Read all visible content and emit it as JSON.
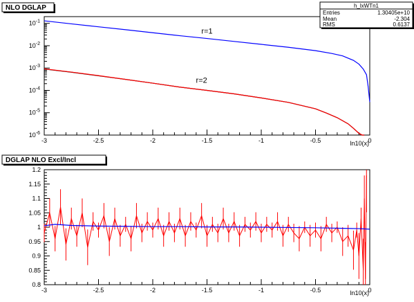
{
  "stats": {
    "name": "h_lxWTn1",
    "rows": [
      {
        "label": "Entries",
        "value": "1.30405e+10"
      },
      {
        "label": "Mean",
        "value": "-2.304"
      },
      {
        "label": "RMS",
        "value": "0.6137"
      }
    ]
  },
  "chart_data": [
    {
      "type": "line",
      "title": "NLO DGLAP",
      "xlabel": "ln10(x)",
      "ylabel": "",
      "xlim": [
        -3,
        0
      ],
      "ylim": [
        1e-06,
        0.2
      ],
      "yscale": "log",
      "x_ticks": [
        "-3",
        "-2.5",
        "-2",
        "-1.5",
        "-1",
        "-0.5",
        "0"
      ],
      "y_ticks": [
        {
          "value": 0.1,
          "base": "10",
          "exp": "-1"
        },
        {
          "value": 0.01,
          "base": "10",
          "exp": "-2"
        },
        {
          "value": 0.001,
          "base": "10",
          "exp": "-3"
        },
        {
          "value": 0.0001,
          "base": "10",
          "exp": "-4"
        },
        {
          "value": 1e-05,
          "base": "10",
          "exp": "-5"
        },
        {
          "value": 1e-06,
          "base": "10",
          "exp": "-6"
        }
      ],
      "annotations": [
        {
          "text": "r=1",
          "x": -1.5,
          "y": 0.035
        },
        {
          "text": "r=2",
          "x": -1.55,
          "y": 0.00022
        }
      ],
      "series": [
        {
          "label": "r=1",
          "color": "#0000ff",
          "x": [
            -3.0,
            -2.75,
            -2.5,
            -2.25,
            -2.0,
            -1.75,
            -1.5,
            -1.25,
            -1.0,
            -0.75,
            -0.5,
            -0.35,
            -0.25,
            -0.15,
            -0.1,
            -0.06,
            -0.03,
            -0.015,
            0.0
          ],
          "y": [
            0.13,
            0.095,
            0.07,
            0.052,
            0.038,
            0.028,
            0.021,
            0.0155,
            0.0115,
            0.0085,
            0.006,
            0.0045,
            0.0035,
            0.0022,
            0.0015,
            0.0009,
            0.0005,
            0.00015,
            3e-05
          ]
        },
        {
          "label": "r=2 (black)",
          "color": "#000000",
          "x": [
            -3.0,
            -2.75,
            -2.5,
            -2.25,
            -2.0,
            -1.75,
            -1.5,
            -1.25,
            -1.0,
            -0.75,
            -0.5,
            -0.4,
            -0.3,
            -0.2,
            -0.15,
            -0.1,
            -0.07,
            -0.05
          ],
          "y": [
            0.0009,
            0.00065,
            0.00045,
            0.00031,
            0.00021,
            0.00014,
            0.0001,
            7e-05,
            4.6e-05,
            2.9e-05,
            1.5e-05,
            9.7e-06,
            6e-06,
            3.2e-06,
            2e-06,
            1.2e-06,
            8e-07,
            6e-07
          ]
        },
        {
          "label": "r=2 (red)",
          "color": "#ff0000",
          "x": [
            -3.0,
            -2.75,
            -2.5,
            -2.25,
            -2.0,
            -1.75,
            -1.5,
            -1.25,
            -1.0,
            -0.75,
            -0.5,
            -0.4,
            -0.3,
            -0.2,
            -0.15,
            -0.1,
            -0.07,
            -0.05
          ],
          "y": [
            0.00092,
            0.00066,
            0.00046,
            0.00031,
            0.00021,
            0.00014,
            0.0001,
            7e-05,
            4.6e-05,
            2.9e-05,
            1.5e-05,
            9.7e-06,
            6e-06,
            3.2e-06,
            2e-06,
            1.2e-06,
            8e-07,
            6e-07
          ]
        }
      ]
    },
    {
      "type": "line",
      "title": "DGLAP NLO Excl/Incl",
      "xlabel": "ln10(x)",
      "ylabel": "",
      "xlim": [
        -3,
        0
      ],
      "ylim": [
        0.8,
        1.2
      ],
      "x_ticks": [
        "-3",
        "-2.5",
        "-2",
        "-1.5",
        "-1",
        "-0.5",
        "0"
      ],
      "y_ticks": [
        "0.8",
        "0.85",
        "0.9",
        "0.95",
        "1",
        "1.05",
        "1.1",
        "1.15",
        "1.2"
      ],
      "series": [
        {
          "label": "blue ratio",
          "color": "#0000ff",
          "x": [
            -3.0,
            -2.9,
            -2.75,
            -2.5,
            -2.25,
            -2.0,
            -1.75,
            -1.5,
            -1.25,
            -1.0,
            -0.75,
            -0.5,
            -0.25,
            -0.1,
            0.0
          ],
          "y": [
            1.005,
            1.01,
            1.006,
            1.004,
            1.003,
            1.002,
            1.002,
            1.001,
            1.001,
            1.0,
            0.999,
            0.998,
            0.996,
            0.995,
            0.993
          ]
        },
        {
          "label": "red ratio",
          "color": "#ff0000",
          "x": [
            -3.0,
            -2.95,
            -2.9,
            -2.85,
            -2.8,
            -2.75,
            -2.7,
            -2.65,
            -2.6,
            -2.55,
            -2.5,
            -2.45,
            -2.4,
            -2.35,
            -2.3,
            -2.25,
            -2.2,
            -2.15,
            -2.1,
            -2.05,
            -2.0,
            -1.95,
            -1.9,
            -1.85,
            -1.8,
            -1.75,
            -1.7,
            -1.65,
            -1.6,
            -1.55,
            -1.5,
            -1.45,
            -1.4,
            -1.35,
            -1.3,
            -1.25,
            -1.2,
            -1.15,
            -1.1,
            -1.05,
            -1.0,
            -0.95,
            -0.9,
            -0.85,
            -0.8,
            -0.75,
            -0.7,
            -0.65,
            -0.6,
            -0.55,
            -0.5,
            -0.45,
            -0.4,
            -0.35,
            -0.3,
            -0.25,
            -0.2,
            -0.15,
            -0.12,
            -0.1,
            -0.08,
            -0.06,
            -0.05,
            -0.04,
            -0.03
          ],
          "y": [
            0.98,
            1.05,
            0.96,
            1.07,
            0.94,
            1.03,
            0.97,
            1.05,
            0.93,
            1.02,
            0.99,
            1.04,
            0.95,
            1.03,
            0.97,
            1.01,
            0.96,
            1.04,
            0.98,
            1.02,
            0.99,
            1.03,
            0.97,
            1.02,
            0.98,
            1.03,
            0.97,
            1.02,
            0.99,
            1.04,
            0.97,
            1.01,
            0.98,
            1.03,
            0.98,
            1.02,
            0.97,
            1.01,
            0.99,
            1.02,
            0.98,
            1.01,
            0.99,
            1.02,
            0.97,
            1.01,
            0.98,
            0.96,
            1.0,
            0.97,
            0.99,
            0.96,
            1.01,
            0.98,
            1.0,
            0.95,
            0.97,
            0.92,
            0.99,
            0.9,
            1.03,
            0.85,
            1.1,
            0.82,
            1.18
          ]
        }
      ]
    }
  ]
}
